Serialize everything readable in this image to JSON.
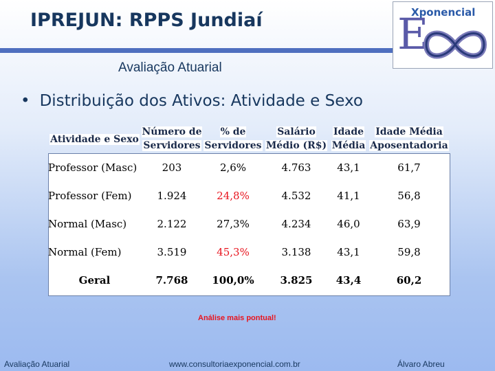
{
  "header": {
    "title": "IPREJUN: RPPS Jundiaí",
    "subtitle": "Avaliação Atuarial",
    "logo_text": "Xponencial",
    "logo_letter": "E"
  },
  "bullet": "Distribuição dos Ativos: Atividade e Sexo",
  "table": {
    "columns": {
      "c0": "Atividade e Sexo",
      "c1a": "Número de",
      "c1b": "Servidores",
      "c2a": "% de",
      "c2b": "Servidores",
      "c3a": "Salário",
      "c3b": "Médio (R$)",
      "c4a": "Idade",
      "c4b": "Média",
      "c5a": "Idade Média",
      "c5b": "Aposentadoria"
    },
    "rows": [
      {
        "name": "Professor (Masc)",
        "num": "203",
        "pct": "2,6%",
        "sal": "4.763",
        "idade": "43,1",
        "apos": "61,7"
      },
      {
        "name": "Professor (Fem)",
        "num": "1.924",
        "pct": "24,8%",
        "sal": "4.532",
        "idade": "41,1",
        "apos": "56,8"
      },
      {
        "name": "Normal (Masc)",
        "num": "2.122",
        "pct": "27,3%",
        "sal": "4.234",
        "idade": "46,0",
        "apos": "63,9"
      },
      {
        "name": "Normal (Fem)",
        "num": "3.519",
        "pct": "45,3%",
        "sal": "3.138",
        "idade": "43,1",
        "apos": "59,8"
      }
    ],
    "total": {
      "name": "Geral",
      "num": "7.768",
      "pct": "100,0%",
      "sal": "3.825",
      "idade": "43,4",
      "apos": "60,2"
    },
    "highlight_color": "#e8141e"
  },
  "note": "Análise mais pontual!",
  "footer": {
    "left": "Avaliação Atuarial",
    "center": "www.consultoriaexponencial.com.br",
    "right": "Álvaro Abreu"
  }
}
